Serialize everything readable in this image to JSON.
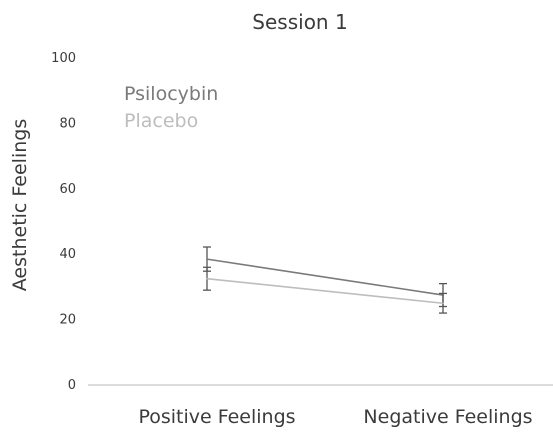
{
  "chart_data": {
    "type": "line",
    "title": "Session 1",
    "xlabel": "",
    "ylabel": "Aesthetic Feelings",
    "ylim": [
      0,
      100
    ],
    "yticks": [
      0,
      20,
      40,
      60,
      80,
      100
    ],
    "categories": [
      "Positive Feelings",
      "Negative Feelings"
    ],
    "grid": false,
    "legend_position": "top-left",
    "series": [
      {
        "name": "Psilocybin",
        "color": "#7a7a7a",
        "values": [
          38.5,
          27.5
        ],
        "error": [
          3.7,
          3.5
        ]
      },
      {
        "name": "Placebo",
        "color": "#bdbdbd",
        "values": [
          32.5,
          25.0
        ],
        "error": [
          3.5,
          3.0
        ]
      }
    ]
  }
}
